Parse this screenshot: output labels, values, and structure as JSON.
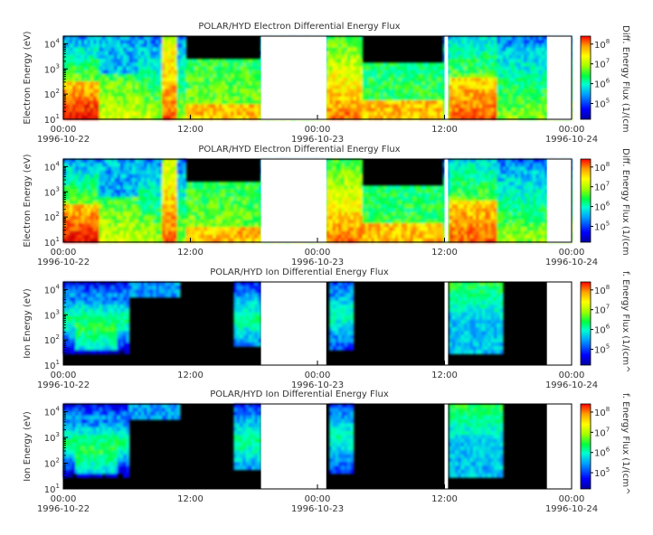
{
  "chart_data": [
    {
      "type": "heatmap",
      "title": "POLAR/HYD  Electron Differential Energy Flux",
      "ylabel": "Electron Energy (eV)",
      "colorbar_label": "Diff. Energy Flux (1/(cm",
      "yscale": "log",
      "ylim": [
        10,
        20000
      ],
      "y_ticks": [
        {
          "base": "10",
          "exp": "1"
        },
        {
          "base": "10",
          "exp": "2"
        },
        {
          "base": "10",
          "exp": "3"
        },
        {
          "base": "10",
          "exp": "4"
        }
      ],
      "colorbar_scale": "log",
      "colorbar_ticks": [
        {
          "base": "10",
          "exp": "5"
        },
        {
          "base": "10",
          "exp": "6"
        },
        {
          "base": "10",
          "exp": "7"
        },
        {
          "base": "10",
          "exp": "8"
        }
      ],
      "x_ticks": [
        {
          "time": "00:00",
          "date": "1996-10-22"
        },
        {
          "time": "12:00",
          "date": ""
        },
        {
          "time": "00:00",
          "date": "1996-10-23"
        },
        {
          "time": "12:00",
          "date": ""
        },
        {
          "time": "00:00",
          "date": "1996-10-24"
        }
      ],
      "data_gaps": [
        [
          "1996-10-22T18:40",
          "1996-10-23T00:50"
        ],
        [
          "1996-10-23T12:00",
          "1996-10-23T12:20"
        ],
        [
          "1996-10-23T21:40",
          "1996-10-24T00:00"
        ]
      ]
    },
    {
      "type": "heatmap",
      "title": "POLAR/HYD  Electron Differential Energy Flux",
      "ylabel": "Electron Energy (eV)",
      "colorbar_label": "Diff. Energy Flux (1/(cm",
      "yscale": "log",
      "ylim": [
        10,
        20000
      ],
      "y_ticks": [
        {
          "base": "10",
          "exp": "1"
        },
        {
          "base": "10",
          "exp": "2"
        },
        {
          "base": "10",
          "exp": "3"
        },
        {
          "base": "10",
          "exp": "4"
        }
      ],
      "colorbar_scale": "log",
      "colorbar_ticks": [
        {
          "base": "10",
          "exp": "5"
        },
        {
          "base": "10",
          "exp": "6"
        },
        {
          "base": "10",
          "exp": "7"
        },
        {
          "base": "10",
          "exp": "8"
        }
      ],
      "x_ticks": [
        {
          "time": "00:00",
          "date": "1996-10-22"
        },
        {
          "time": "12:00",
          "date": ""
        },
        {
          "time": "00:00",
          "date": "1996-10-23"
        },
        {
          "time": "12:00",
          "date": ""
        },
        {
          "time": "00:00",
          "date": "1996-10-24"
        }
      ],
      "data_gaps": [
        [
          "1996-10-22T18:40",
          "1996-10-23T00:50"
        ],
        [
          "1996-10-23T12:00",
          "1996-10-23T12:20"
        ],
        [
          "1996-10-23T21:40",
          "1996-10-24T00:00"
        ]
      ]
    },
    {
      "type": "heatmap",
      "title": "POLAR/HYD  Ion Differential Energy Flux",
      "ylabel": "Ion Energy (eV)",
      "colorbar_label": "f. Energy Flux (1/(cm^",
      "yscale": "log",
      "ylim": [
        10,
        20000
      ],
      "y_ticks": [
        {
          "base": "10",
          "exp": "1"
        },
        {
          "base": "10",
          "exp": "2"
        },
        {
          "base": "10",
          "exp": "3"
        },
        {
          "base": "10",
          "exp": "4"
        }
      ],
      "colorbar_scale": "log",
      "colorbar_ticks": [
        {
          "base": "10",
          "exp": "5"
        },
        {
          "base": "10",
          "exp": "6"
        },
        {
          "base": "10",
          "exp": "7"
        },
        {
          "base": "10",
          "exp": "8"
        }
      ],
      "x_ticks": [
        {
          "time": "00:00",
          "date": "1996-10-22"
        },
        {
          "time": "12:00",
          "date": ""
        },
        {
          "time": "00:00",
          "date": "1996-10-23"
        },
        {
          "time": "12:00",
          "date": ""
        },
        {
          "time": "00:00",
          "date": "1996-10-24"
        }
      ],
      "data_gaps": [
        [
          "1996-10-22T18:40",
          "1996-10-23T00:50"
        ],
        [
          "1996-10-23T12:00",
          "1996-10-23T12:20"
        ],
        [
          "1996-10-23T21:40",
          "1996-10-24T00:00"
        ]
      ]
    },
    {
      "type": "heatmap",
      "title": "POLAR/HYD  Ion Differential Energy Flux",
      "ylabel": "Ion Energy (eV)",
      "colorbar_label": "f. Energy Flux (1/(cm^",
      "yscale": "log",
      "ylim": [
        10,
        20000
      ],
      "y_ticks": [
        {
          "base": "10",
          "exp": "1"
        },
        {
          "base": "10",
          "exp": "2"
        },
        {
          "base": "10",
          "exp": "3"
        },
        {
          "base": "10",
          "exp": "4"
        }
      ],
      "colorbar_scale": "log",
      "colorbar_ticks": [
        {
          "base": "10",
          "exp": "5"
        },
        {
          "base": "10",
          "exp": "6"
        },
        {
          "base": "10",
          "exp": "7"
        },
        {
          "base": "10",
          "exp": "8"
        }
      ],
      "x_ticks": [
        {
          "time": "00:00",
          "date": "1996-10-22"
        },
        {
          "time": "12:00",
          "date": ""
        },
        {
          "time": "00:00",
          "date": "1996-10-23"
        },
        {
          "time": "12:00",
          "date": ""
        },
        {
          "time": "00:00",
          "date": "1996-10-24"
        }
      ],
      "data_gaps": [
        [
          "1996-10-22T18:40",
          "1996-10-23T00:50"
        ],
        [
          "1996-10-23T12:00",
          "1996-10-23T12:20"
        ],
        [
          "1996-10-23T21:40",
          "1996-10-24T00:00"
        ]
      ]
    }
  ],
  "colors": {
    "background_no_flux": "#000000",
    "data_gap": "#ffffff",
    "colormap": [
      "#0000a0",
      "#0000ff",
      "#00a0ff",
      "#00ffd0",
      "#00ff40",
      "#a0ff00",
      "#ffff00",
      "#ffa000",
      "#ff3000",
      "#d00000"
    ]
  }
}
